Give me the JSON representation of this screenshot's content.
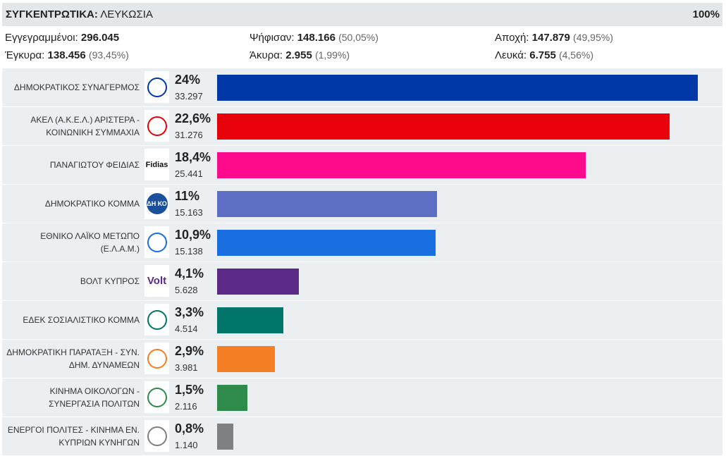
{
  "header": {
    "title_bold": "ΣΥΓΚΕΝΤΡΩΤΙΚΑ:",
    "title_rest": "ΛΕΥΚΩΣΙΑ",
    "percent": "100%"
  },
  "stats": {
    "registered_label": "Εγγεγραμμένοι:",
    "registered_value": "296.045",
    "voted_label": "Ψήφισαν:",
    "voted_value": "148.166",
    "voted_pct": "(50,05%)",
    "abstention_label": "Αποχή:",
    "abstention_value": "147.879",
    "abstention_pct": "(49,95%)",
    "valid_label": "Έγκυρα:",
    "valid_value": "138.456",
    "valid_pct": "(93,45%)",
    "invalid_label": "Άκυρα:",
    "invalid_value": "2.955",
    "invalid_pct": "(1,99%)",
    "blank_label": "Λευκά:",
    "blank_value": "6.755",
    "blank_pct": "(4,56%)"
  },
  "chart_data": {
    "type": "bar",
    "orientation": "horizontal",
    "categories": [
      "ΔΗΜΟΚΡΑΤΙΚΟΣ ΣΥΝΑΓΕΡΜΟΣ",
      "ΑΚΕΛ (Α.Κ.Ε.Λ.) ΑΡΙΣΤΕΡΑ - ΚΟΙΝΩΝΙΚΗ ΣΥΜΜΑΧΙΑ",
      "ΠΑΝΑΓΙΩΤΟΥ ΦΕΙΔΙΑΣ",
      "ΔΗΜΟΚΡΑΤΙΚΟ ΚΟΜΜΑ",
      "ΕΘΝΙΚΟ ΛΑΪΚΟ ΜΕΤΩΠΟ (Ε.Λ.Α.Μ.)",
      "ΒΟΛΤ ΚΥΠΡΟΣ",
      "ΕΔΕΚ ΣΟΣΙΑΛΙΣΤΙΚΟ ΚΟΜΜΑ",
      "ΔΗΜΟΚΡΑΤΙΚΗ ΠΑΡΑΤΑΞΗ - ΣΥΝ. ΔΗΜ. ΔΥΝΑΜΕΩΝ",
      "ΚΙΝΗΜΑ ΟΙΚΟΛΟΓΩΝ - ΣΥΝΕΡΓΑΣΙΑ ΠΟΛΙΤΩΝ",
      "ΕΝΕΡΓΟΙ ΠΟΛΙΤΕΣ - ΚΙΝΗΜΑ ΕΝ. ΚΥΠΡΙΩΝ ΚΥΝΗΓΩΝ"
    ],
    "values": [
      24,
      22.6,
      18.4,
      11,
      10.9,
      4.1,
      3.3,
      2.9,
      1.5,
      0.8
    ],
    "percent_labels": [
      "24%",
      "22,6%",
      "18,4%",
      "11%",
      "10,9%",
      "4,1%",
      "3,3%",
      "2,9%",
      "1,5%",
      "0,8%"
    ],
    "votes": [
      "33.297",
      "31.276",
      "25.441",
      "15.163",
      "15.138",
      "5.628",
      "4.514",
      "3.981",
      "2.116",
      "1.140"
    ],
    "colors": [
      "#0038a8",
      "#e8000b",
      "#ff0a8c",
      "#5c6fc4",
      "#1a6fe0",
      "#5b2a86",
      "#00756a",
      "#f47f24",
      "#2e8b4a",
      "#808080"
    ],
    "logos": [
      "disy-emblem-icon",
      "akel-emblem-icon",
      "fidias-logo",
      "diko-emblem-icon",
      "elam-emblem-icon",
      "volt-logo",
      "edek-emblem-icon",
      "dipa-logo",
      "ecologists-emblem-icon",
      "active-citizens-logo"
    ],
    "logo_texts": [
      "",
      "",
      "Fidias",
      "ΔΗ ΚΟ",
      "",
      "Volt",
      "",
      "",
      "",
      ""
    ],
    "xlim": [
      0,
      25
    ]
  }
}
